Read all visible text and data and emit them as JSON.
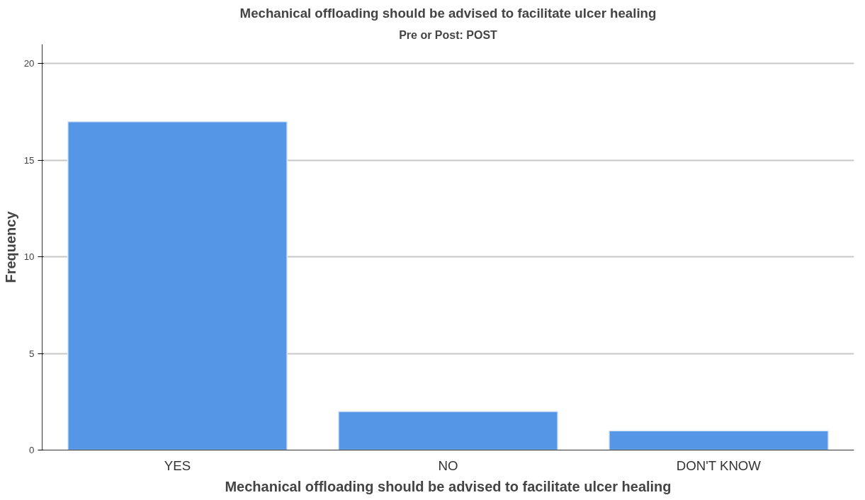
{
  "chart_data": {
    "type": "bar",
    "title": "Mechanical offloading should be advised to facilitate ulcer healing",
    "subtitle": "Pre or Post: POST",
    "xlabel": "Mechanical offloading should be advised to facilitate ulcer healing",
    "ylabel": "Frequency",
    "categories": [
      "YES",
      "NO",
      "DON'T KNOW"
    ],
    "values": [
      17,
      2,
      1
    ],
    "color": "#5596e6",
    "ylim": [
      0,
      21
    ],
    "yticks": [
      0,
      5,
      10,
      15,
      20
    ],
    "grid": "y"
  }
}
